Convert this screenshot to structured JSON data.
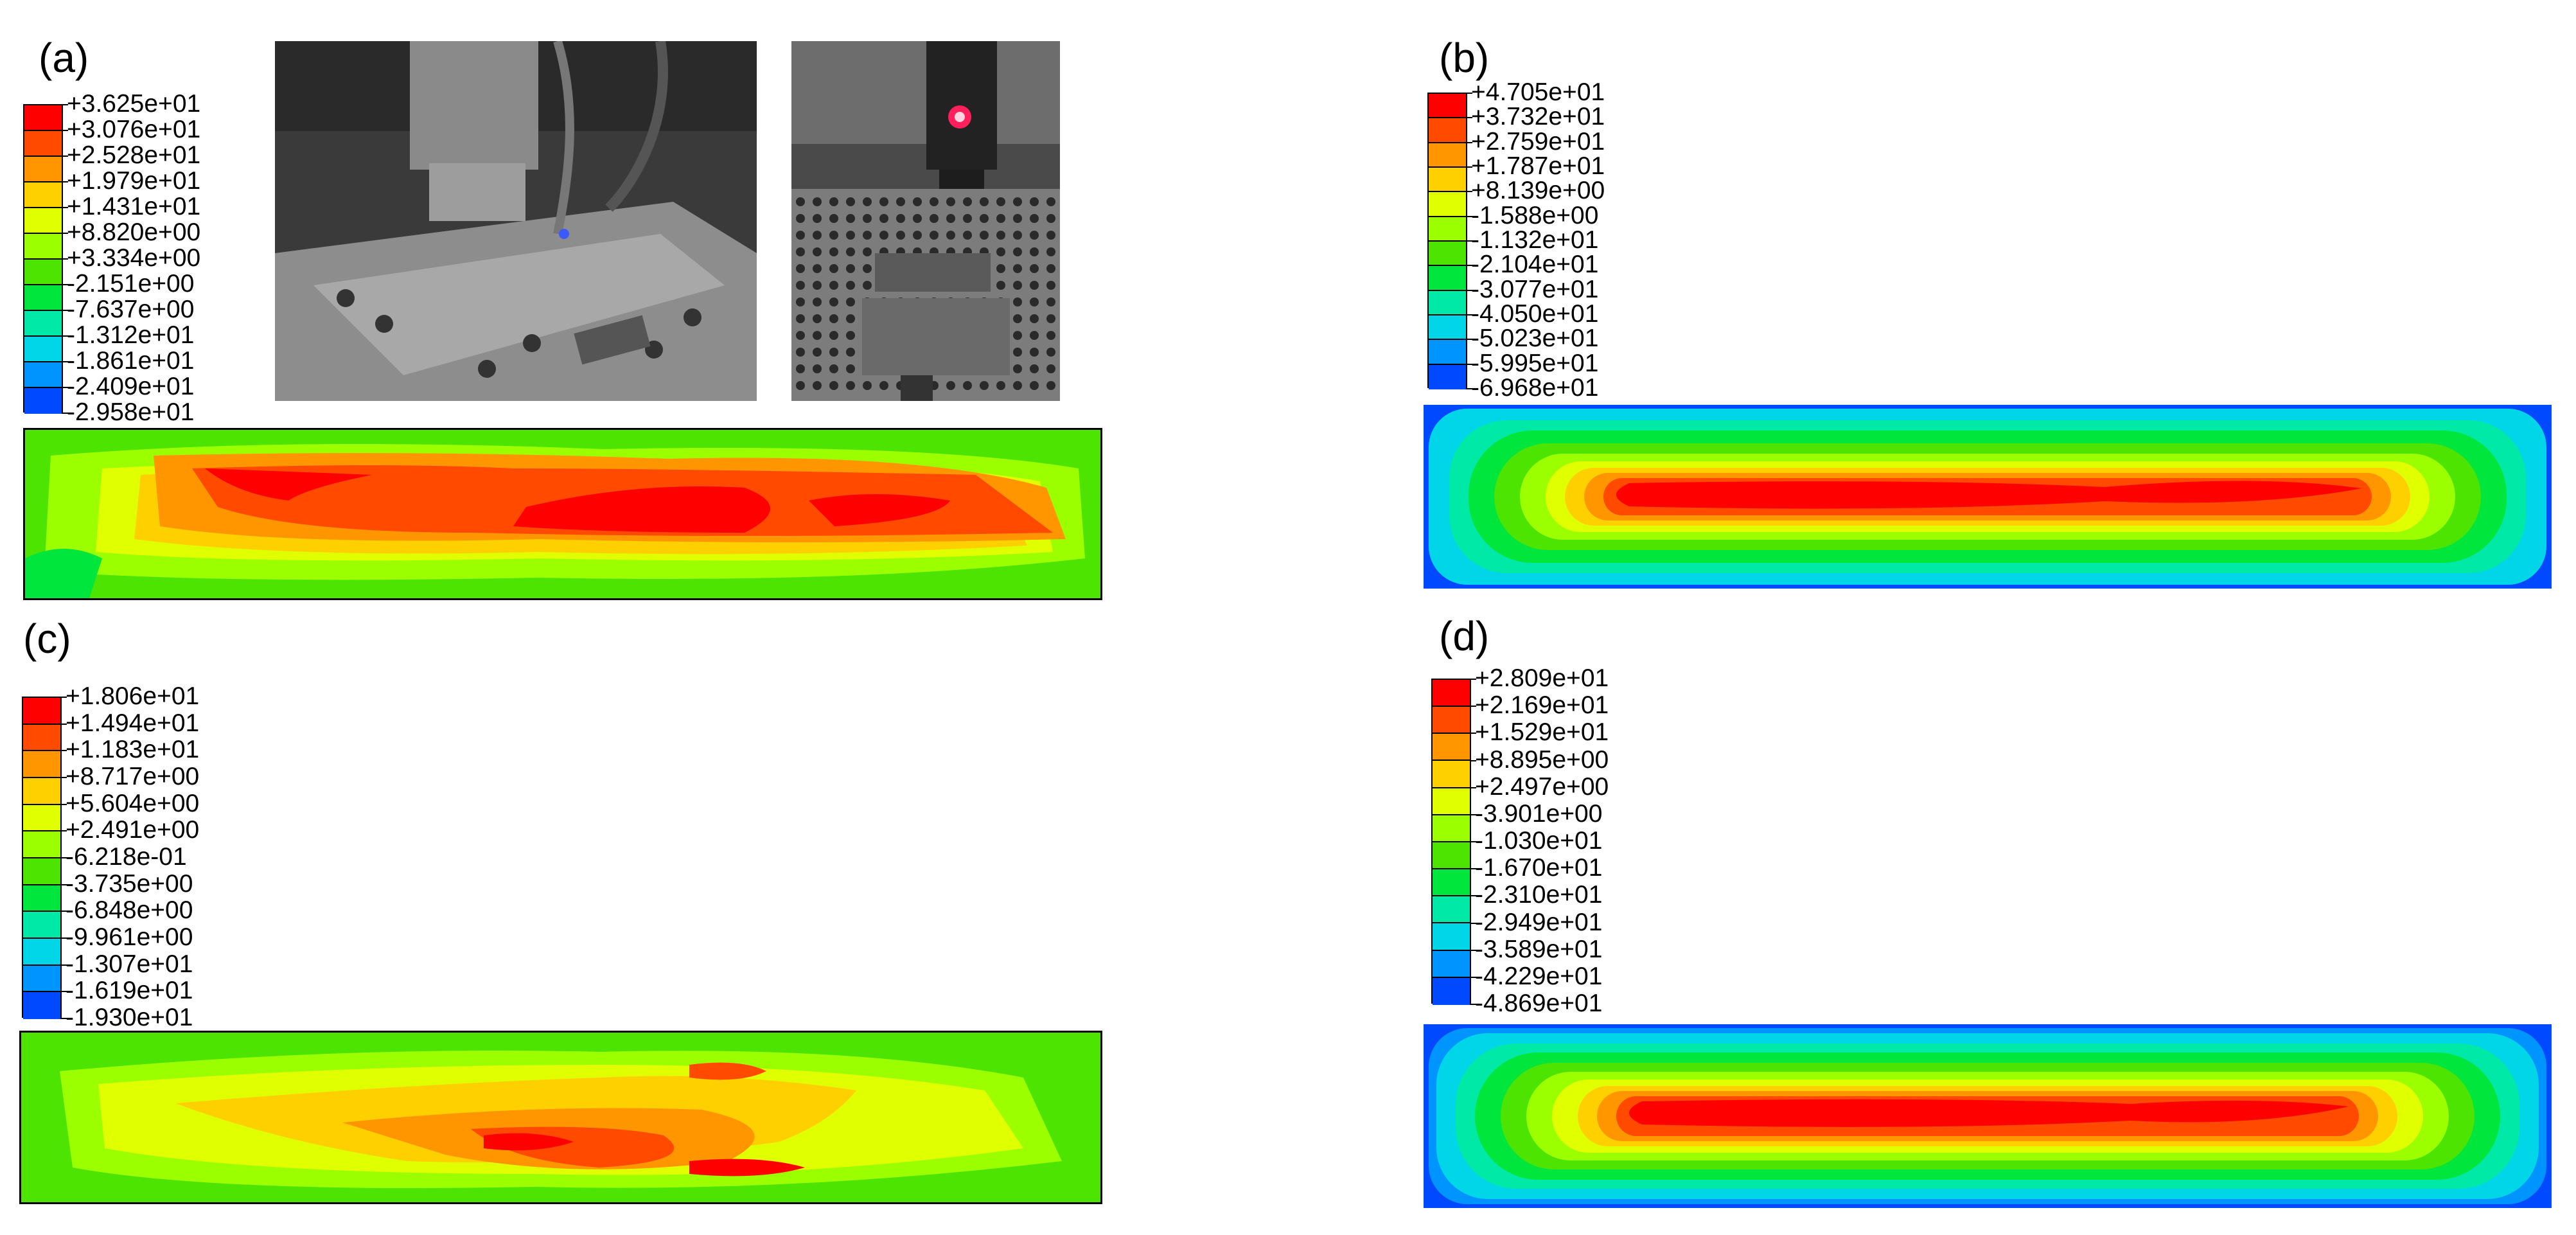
{
  "panels": {
    "a": {
      "label": "(a)",
      "legend": [
        "+3.625e+01",
        "+3.076e+01",
        "+2.528e+01",
        "+1.979e+01",
        "+1.431e+01",
        "+8.820e+00",
        "+3.334e+00",
        "-2.151e+00",
        "-7.637e+00",
        "-1.312e+01",
        "-1.861e+01",
        "-2.409e+01",
        "-2.958e+01"
      ]
    },
    "b": {
      "label": "(b)",
      "legend": [
        "+4.705e+01",
        "+3.732e+01",
        "+2.759e+01",
        "+1.787e+01",
        "+8.139e+00",
        "-1.588e+00",
        "-1.132e+01",
        "-2.104e+01",
        "-3.077e+01",
        "-4.050e+01",
        "-5.023e+01",
        "-5.995e+01",
        "-6.968e+01"
      ]
    },
    "c": {
      "label": "(c)",
      "legend": [
        "+1.806e+01",
        "+1.494e+01",
        "+1.183e+01",
        "+8.717e+00",
        "+5.604e+00",
        "+2.491e+00",
        "-6.218e-01",
        "-3.735e+00",
        "-6.848e+00",
        "-9.961e+00",
        "-1.307e+01",
        "-1.619e+01",
        "-1.930e+01"
      ]
    },
    "d": {
      "label": "(d)",
      "legend": [
        "+2.809e+01",
        "+2.169e+01",
        "+1.529e+01",
        "+8.895e+00",
        "+2.497e+00",
        "-3.901e+00",
        "-1.030e+01",
        "-1.670e+01",
        "-2.310e+01",
        "-2.949e+01",
        "-3.589e+01",
        "-4.229e+01",
        "-4.869e+01"
      ]
    }
  },
  "colormap": [
    "#ff0000",
    "#ff4a00",
    "#ff9600",
    "#ffd000",
    "#e0ff00",
    "#9cff00",
    "#4ce400",
    "#00e63c",
    "#00e9a6",
    "#00d6e8",
    "#0094ff",
    "#0049ff",
    "#0000ff"
  ],
  "photos": [
    {
      "name": "machine-photo-left"
    },
    {
      "name": "machine-photo-right"
    }
  ]
}
